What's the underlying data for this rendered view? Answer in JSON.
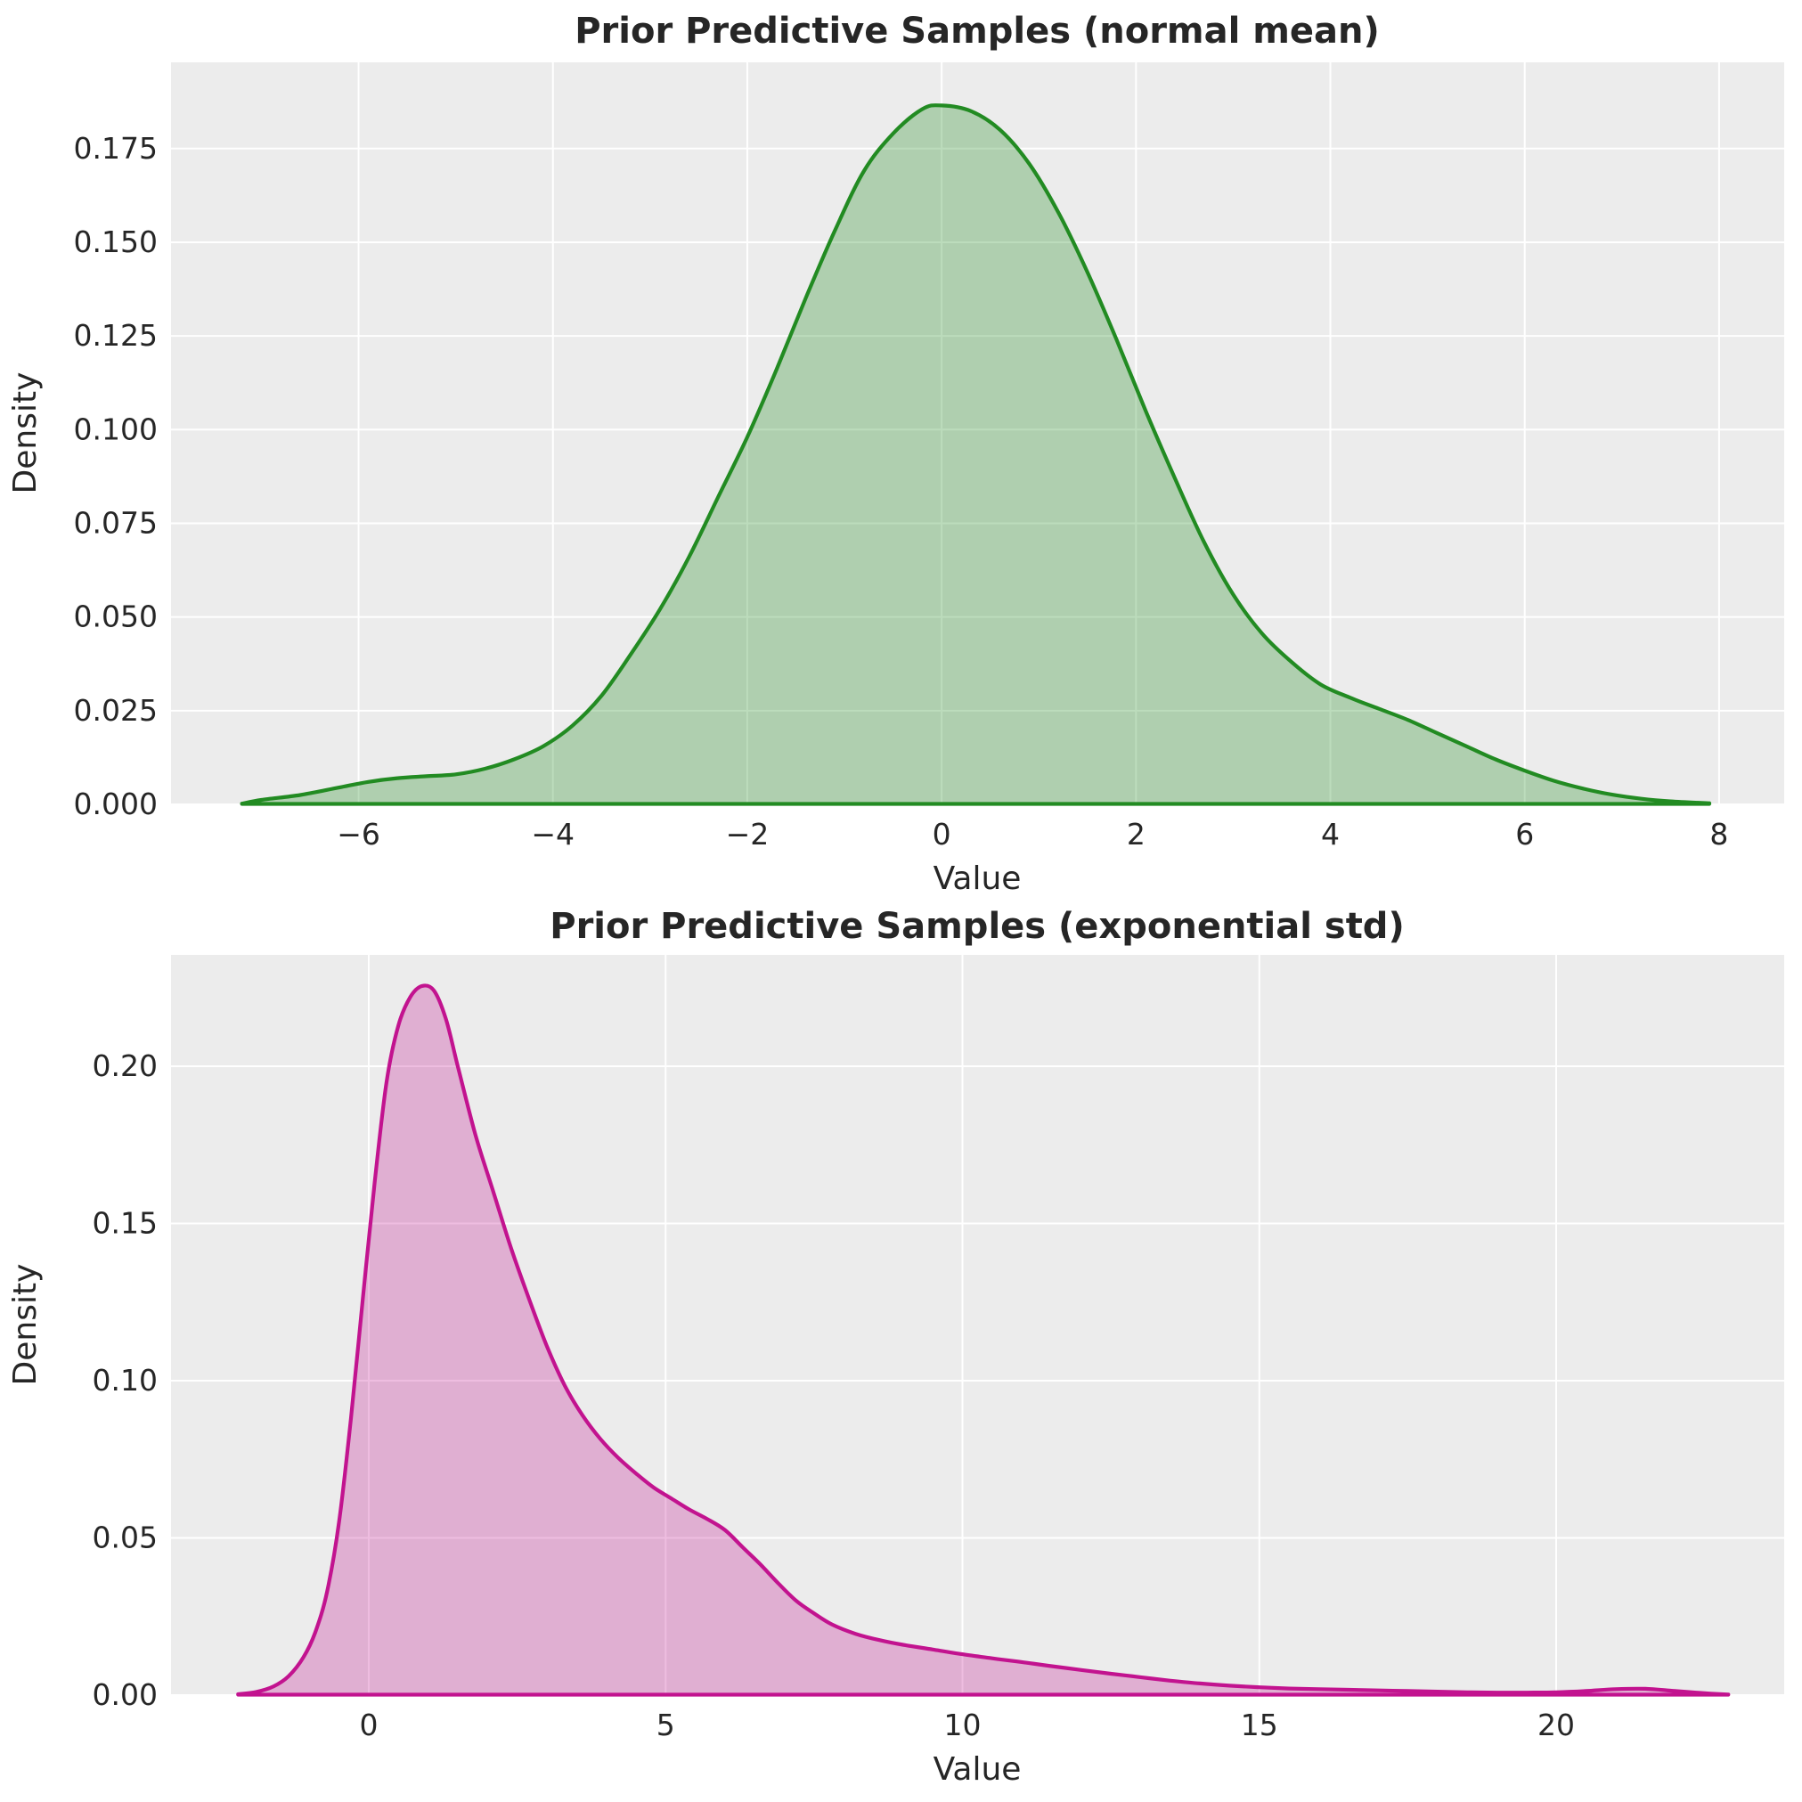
{
  "page": {
    "background": "#ffffff"
  },
  "chart_data": [
    {
      "type": "area",
      "subtype": "kde-density",
      "title": "Prior Predictive Samples (normal mean)",
      "xlabel": "Value",
      "ylabel": "Density",
      "grid": true,
      "legend": false,
      "plot_bg": "#ececec",
      "grid_color": "#ffffff",
      "line_color": "#228B22",
      "fill_color": "rgba(34,139,34,0.30)",
      "xlim": [
        -7.93,
        8.67
      ],
      "ylim": [
        0,
        0.198
      ],
      "xtick_values": [
        -6,
        -4,
        -2,
        0,
        2,
        4,
        6,
        8
      ],
      "xtick_labels": [
        "−6",
        "−4",
        "−2",
        "0",
        "2",
        "4",
        "6",
        "8"
      ],
      "ytick_values": [
        0.0,
        0.025,
        0.05,
        0.075,
        0.1,
        0.125,
        0.15,
        0.175
      ],
      "ytick_labels": [
        "0.000",
        "0.025",
        "0.050",
        "0.075",
        "0.100",
        "0.125",
        "0.150",
        "0.175"
      ],
      "x": [
        -7.2,
        -7.0,
        -6.6,
        -6.2,
        -5.9,
        -5.6,
        -5.3,
        -5.0,
        -4.7,
        -4.4,
        -4.1,
        -3.8,
        -3.5,
        -3.2,
        -2.9,
        -2.6,
        -2.3,
        -2.0,
        -1.7,
        -1.4,
        -1.1,
        -0.8,
        -0.5,
        -0.2,
        0.0,
        0.3,
        0.6,
        0.9,
        1.2,
        1.5,
        1.8,
        2.1,
        2.4,
        2.7,
        3.0,
        3.3,
        3.6,
        3.9,
        4.2,
        4.5,
        4.8,
        5.1,
        5.4,
        5.7,
        6.0,
        6.3,
        6.6,
        6.9,
        7.2,
        7.5,
        7.9
      ],
      "y": [
        0.0002,
        0.0012,
        0.0025,
        0.0045,
        0.006,
        0.007,
        0.0075,
        0.008,
        0.0095,
        0.012,
        0.0155,
        0.021,
        0.029,
        0.04,
        0.052,
        0.066,
        0.082,
        0.098,
        0.116,
        0.135,
        0.153,
        0.169,
        0.179,
        0.1855,
        0.1865,
        0.185,
        0.18,
        0.171,
        0.158,
        0.142,
        0.124,
        0.105,
        0.087,
        0.07,
        0.056,
        0.0455,
        0.038,
        0.032,
        0.0285,
        0.0255,
        0.0225,
        0.019,
        0.0155,
        0.012,
        0.009,
        0.0063,
        0.0042,
        0.0026,
        0.0015,
        0.0008,
        0.0003
      ],
      "peak": {
        "x": -0.05,
        "density": 0.186
      }
    },
    {
      "type": "area",
      "subtype": "kde-density",
      "title": "Prior Predictive Samples (exponential std)",
      "xlabel": "Value",
      "ylabel": "Density",
      "grid": true,
      "legend": false,
      "plot_bg": "#ececec",
      "grid_color": "#ffffff",
      "line_color": "#C2138F",
      "fill_color": "rgba(194,19,143,0.28)",
      "xlim": [
        -3.33,
        23.84
      ],
      "ylim": [
        0,
        0.2354
      ],
      "xtick_values": [
        0,
        5,
        10,
        15,
        20
      ],
      "xtick_labels": [
        "0",
        "5",
        "10",
        "15",
        "20"
      ],
      "ytick_values": [
        0.0,
        0.05,
        0.1,
        0.15,
        0.2
      ],
      "ytick_labels": [
        "0.00",
        "0.05",
        "0.10",
        "0.15",
        "0.20"
      ],
      "x": [
        -2.2,
        -1.9,
        -1.6,
        -1.35,
        -1.1,
        -0.9,
        -0.7,
        -0.5,
        -0.3,
        -0.1,
        0.1,
        0.3,
        0.5,
        0.7,
        0.9,
        1.1,
        1.3,
        1.5,
        1.8,
        2.1,
        2.4,
        2.7,
        3.0,
        3.3,
        3.6,
        3.9,
        4.2,
        4.5,
        4.8,
        5.1,
        5.4,
        5.7,
        6.0,
        6.3,
        6.6,
        6.9,
        7.2,
        7.5,
        7.8,
        8.2,
        8.6,
        9.0,
        9.5,
        10.0,
        10.5,
        11.0,
        11.5,
        12.0,
        12.5,
        13.0,
        13.5,
        14.0,
        14.5,
        15.0,
        15.5,
        16.0,
        16.5,
        17.0,
        17.5,
        18.0,
        18.5,
        19.0,
        19.5,
        20.0,
        20.5,
        21.0,
        21.5,
        22.0,
        22.5,
        22.9
      ],
      "y": [
        0.0003,
        0.001,
        0.0028,
        0.006,
        0.012,
        0.02,
        0.033,
        0.055,
        0.088,
        0.126,
        0.163,
        0.195,
        0.213,
        0.222,
        0.2255,
        0.224,
        0.215,
        0.2,
        0.178,
        0.16,
        0.142,
        0.126,
        0.111,
        0.0985,
        0.089,
        0.0815,
        0.0755,
        0.0705,
        0.066,
        0.0625,
        0.059,
        0.056,
        0.0525,
        0.047,
        0.0415,
        0.0355,
        0.03,
        0.026,
        0.0225,
        0.0195,
        0.0175,
        0.016,
        0.0145,
        0.013,
        0.0117,
        0.0105,
        0.0092,
        0.008,
        0.0068,
        0.0057,
        0.0046,
        0.0037,
        0.003,
        0.0025,
        0.0021,
        0.0019,
        0.0017,
        0.0015,
        0.0013,
        0.0011,
        0.0009,
        0.0008,
        0.0008,
        0.0009,
        0.0013,
        0.0019,
        0.002,
        0.0013,
        0.0006,
        0.0002
      ],
      "peak": {
        "x": 0.9,
        "density": 0.2255
      }
    }
  ]
}
